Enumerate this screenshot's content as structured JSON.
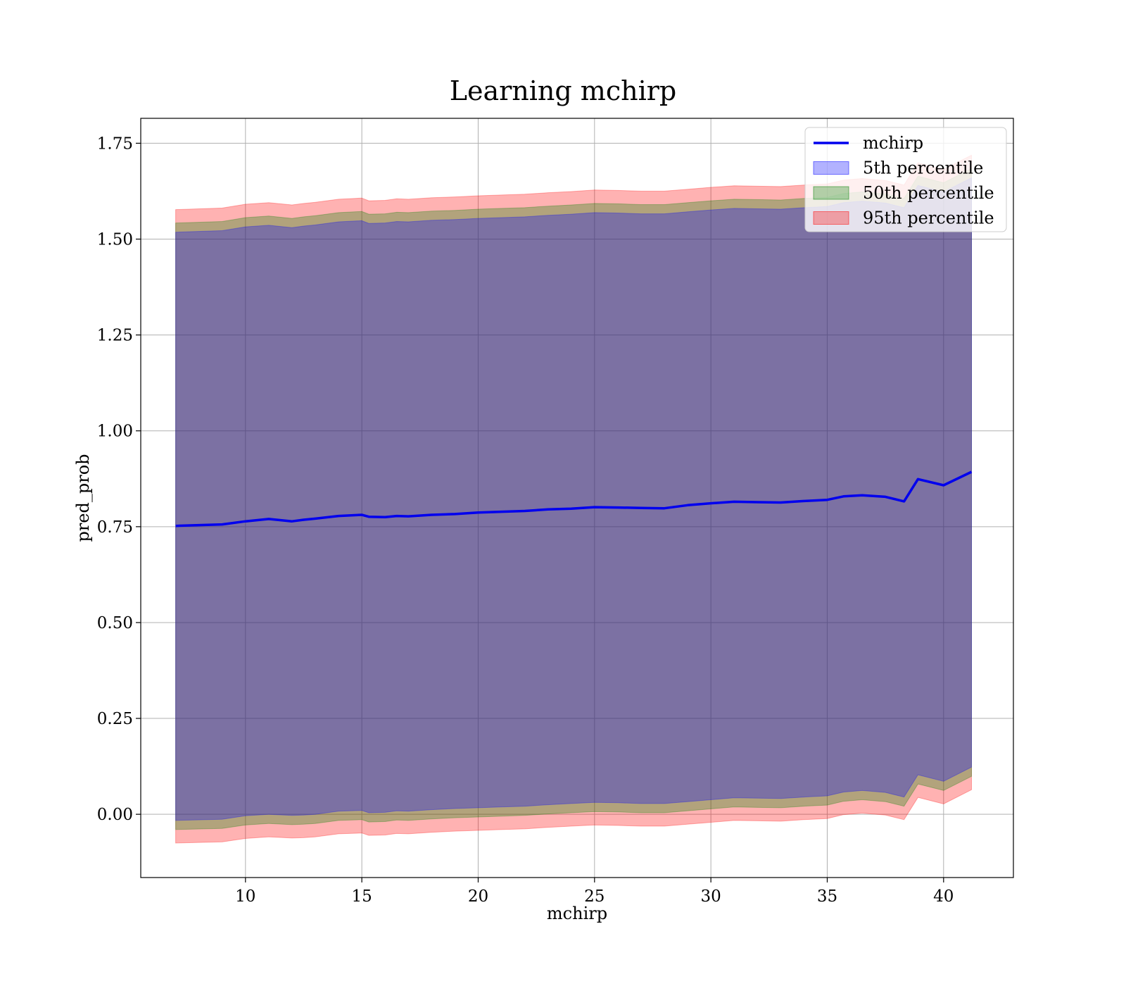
{
  "chart_data": {
    "type": "area",
    "title": "Learning mchirp",
    "xlabel": "mchirp",
    "ylabel": "pred_prob",
    "xlim": [
      5.5,
      43.0
    ],
    "ylim": [
      -0.165,
      1.815
    ],
    "x_ticks": [
      10,
      15,
      20,
      25,
      30,
      35,
      40
    ],
    "y_ticks": [
      0.0,
      0.25,
      0.5,
      0.75,
      1.0,
      1.25,
      1.5,
      1.75
    ],
    "x_tick_labels": [
      "10",
      "15",
      "20",
      "25",
      "30",
      "35",
      "40"
    ],
    "y_tick_labels": [
      "0.00",
      "0.25",
      "0.50",
      "0.75",
      "1.00",
      "1.25",
      "1.50",
      "1.75"
    ],
    "grid": true,
    "legend_position": "top-right",
    "x": [
      7.0,
      9.0,
      10.0,
      11.0,
      12.0,
      12.5,
      13.0,
      14.0,
      15.0,
      15.3,
      16.0,
      16.5,
      17.0,
      18.0,
      19.0,
      20.0,
      21.0,
      22.0,
      23.0,
      24.0,
      25.0,
      26.0,
      27.0,
      28.0,
      29.0,
      30.0,
      31.0,
      32.0,
      33.0,
      34.0,
      35.0,
      35.7,
      36.5,
      37.5,
      38.3,
      38.9,
      40.0,
      41.2
    ],
    "series": [
      {
        "name": "mchirp",
        "kind": "line",
        "color": "#0000ee",
        "values": [
          0.752,
          0.756,
          0.764,
          0.77,
          0.764,
          0.768,
          0.771,
          0.778,
          0.781,
          0.776,
          0.775,
          0.778,
          0.777,
          0.781,
          0.783,
          0.787,
          0.789,
          0.791,
          0.795,
          0.797,
          0.801,
          0.8,
          0.799,
          0.798,
          0.806,
          0.811,
          0.815,
          0.814,
          0.813,
          0.817,
          0.82,
          0.829,
          0.832,
          0.828,
          0.816,
          0.874,
          0.858,
          0.893
        ]
      },
      {
        "name": "5th percentile",
        "kind": "band",
        "color": "#0000ff",
        "opacity": 0.3,
        "lower": [
          -0.016,
          -0.013,
          -0.004,
          0.0,
          -0.003,
          -0.002,
          0.0,
          0.008,
          0.01,
          0.004,
          0.005,
          0.009,
          0.008,
          0.012,
          0.015,
          0.017,
          0.019,
          0.021,
          0.025,
          0.028,
          0.031,
          0.03,
          0.028,
          0.028,
          0.033,
          0.038,
          0.043,
          0.042,
          0.041,
          0.045,
          0.048,
          0.058,
          0.062,
          0.057,
          0.045,
          0.103,
          0.086,
          0.123
        ],
        "upper": [
          1.518,
          1.522,
          1.532,
          1.536,
          1.53,
          1.534,
          1.537,
          1.545,
          1.548,
          1.541,
          1.542,
          1.546,
          1.545,
          1.549,
          1.551,
          1.554,
          1.556,
          1.558,
          1.562,
          1.565,
          1.569,
          1.568,
          1.566,
          1.566,
          1.571,
          1.576,
          1.58,
          1.579,
          1.578,
          1.582,
          1.585,
          1.595,
          1.599,
          1.594,
          1.582,
          1.64,
          1.623,
          1.66
        ]
      },
      {
        "name": "50th percentile",
        "kind": "band",
        "color": "#008000",
        "opacity": 0.3,
        "lower": [
          -0.04,
          -0.037,
          -0.028,
          -0.024,
          -0.027,
          -0.026,
          -0.024,
          -0.016,
          -0.014,
          -0.02,
          -0.019,
          -0.015,
          -0.016,
          -0.012,
          -0.009,
          -0.007,
          -0.005,
          -0.003,
          0.001,
          0.004,
          0.007,
          0.006,
          0.004,
          0.004,
          0.009,
          0.014,
          0.019,
          0.018,
          0.017,
          0.021,
          0.024,
          0.034,
          0.038,
          0.033,
          0.021,
          0.079,
          0.062,
          0.099
        ],
        "upper": [
          1.542,
          1.546,
          1.556,
          1.56,
          1.554,
          1.558,
          1.561,
          1.569,
          1.572,
          1.565,
          1.566,
          1.57,
          1.569,
          1.573,
          1.575,
          1.578,
          1.58,
          1.582,
          1.586,
          1.589,
          1.593,
          1.592,
          1.59,
          1.59,
          1.595,
          1.6,
          1.604,
          1.603,
          1.602,
          1.606,
          1.609,
          1.619,
          1.623,
          1.618,
          1.606,
          1.664,
          1.647,
          1.684
        ]
      },
      {
        "name": "95th percentile",
        "kind": "band",
        "color": "#ff0000",
        "opacity": 0.3,
        "lower": [
          -0.075,
          -0.072,
          -0.063,
          -0.059,
          -0.062,
          -0.061,
          -0.059,
          -0.051,
          -0.049,
          -0.055,
          -0.054,
          -0.05,
          -0.051,
          -0.047,
          -0.044,
          -0.042,
          -0.04,
          -0.038,
          -0.034,
          -0.031,
          -0.028,
          -0.029,
          -0.031,
          -0.031,
          -0.026,
          -0.021,
          -0.016,
          -0.017,
          -0.018,
          -0.014,
          -0.011,
          -0.001,
          0.003,
          -0.002,
          -0.014,
          0.044,
          0.027,
          0.064
        ],
        "upper": [
          1.577,
          1.581,
          1.591,
          1.595,
          1.589,
          1.593,
          1.596,
          1.604,
          1.607,
          1.6,
          1.601,
          1.605,
          1.604,
          1.608,
          1.61,
          1.613,
          1.615,
          1.617,
          1.621,
          1.624,
          1.628,
          1.627,
          1.625,
          1.625,
          1.63,
          1.635,
          1.639,
          1.638,
          1.637,
          1.641,
          1.644,
          1.654,
          1.658,
          1.653,
          1.641,
          1.699,
          1.682,
          1.719
        ]
      }
    ]
  }
}
